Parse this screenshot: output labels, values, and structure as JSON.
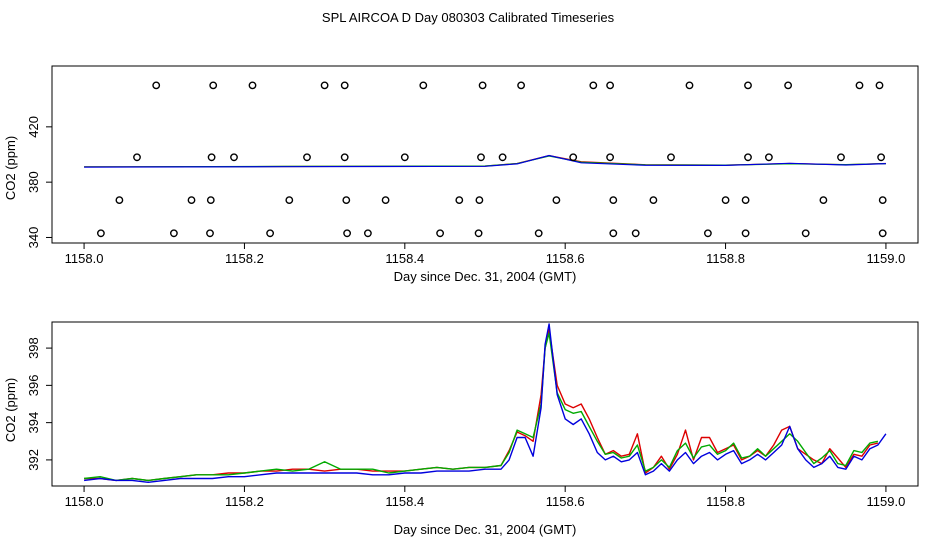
{
  "figure": {
    "title": "SPL AIRCOA D  Day 080303  Calibrated Timeseries"
  },
  "chart_data": [
    {
      "type": "scatter",
      "title": "SPL AIRCOA D  Day 080303  Calibrated Timeseries",
      "xlabel": "Day since Dec. 31, 2004 (GMT)",
      "ylabel": "CO2 (ppm)",
      "xlim": [
        1157.96,
        1159.04
      ],
      "ylim": [
        336,
        464
      ],
      "x_ticks": [
        "1158.0",
        "1158.2",
        "1158.4",
        "1158.6",
        "1158.8",
        "1159.0"
      ],
      "y_ticks": [
        "340",
        "380",
        "420"
      ],
      "grid": false,
      "colors": {
        "points": "#000000",
        "line_red": "#dd0000",
        "line_green": "#00aa00",
        "line_blue": "#0000dd"
      },
      "point_series": [
        {
          "y": 450,
          "x": [
            1158.09,
            1158.161,
            1158.21,
            1158.3,
            1158.325,
            1158.423,
            1158.497,
            1158.545,
            1158.635,
            1158.656,
            1158.755,
            1158.828,
            1158.878,
            1158.967,
            1158.992
          ]
        },
        {
          "y": 398,
          "x": [
            1158.066,
            1158.159,
            1158.187,
            1158.278,
            1158.325,
            1158.4,
            1158.495,
            1158.522,
            1158.61,
            1158.656,
            1158.732,
            1158.828,
            1158.854,
            1158.944,
            1158.994
          ]
        },
        {
          "y": 367,
          "x": [
            1158.044,
            1158.134,
            1158.158,
            1158.256,
            1158.327,
            1158.376,
            1158.468,
            1158.493,
            1158.589,
            1158.66,
            1158.71,
            1158.8,
            1158.825,
            1158.922,
            1158.996
          ]
        },
        {
          "y": 343,
          "x": [
            1158.021,
            1158.112,
            1158.157,
            1158.232,
            1158.328,
            1158.354,
            1158.444,
            1158.492,
            1158.567,
            1158.66,
            1158.688,
            1158.778,
            1158.825,
            1158.9,
            1158.996
          ]
        }
      ],
      "lines": [
        {
          "color": "red",
          "x": [
            1158.0,
            1158.25,
            1158.5,
            1158.54,
            1158.58,
            1158.62,
            1158.7,
            1158.8,
            1158.88,
            1158.95,
            1159.0
          ],
          "y": [
            391.0,
            391.3,
            391.6,
            393.5,
            399.2,
            394.8,
            392.6,
            392.3,
            393.5,
            392.6,
            393.5
          ]
        },
        {
          "color": "green",
          "x": [
            1158.0,
            1158.25,
            1158.5,
            1158.54,
            1158.58,
            1158.62,
            1158.7,
            1158.8,
            1158.88,
            1158.95,
            1159.0
          ],
          "y": [
            391.0,
            391.4,
            391.7,
            393.4,
            398.9,
            394.4,
            392.5,
            392.3,
            393.3,
            392.7,
            393.4
          ]
        },
        {
          "color": "blue",
          "x": [
            1158.0,
            1158.25,
            1158.5,
            1158.54,
            1158.58,
            1158.62,
            1158.7,
            1158.8,
            1158.88,
            1158.95,
            1159.0
          ],
          "y": [
            390.9,
            391.2,
            391.5,
            393.2,
            399.3,
            394.0,
            392.2,
            392.1,
            393.6,
            392.4,
            393.4
          ]
        }
      ]
    },
    {
      "type": "line",
      "xlabel": "Day since Dec. 31, 2004 (GMT)",
      "ylabel": "CO2 (ppm)",
      "xlim": [
        1157.96,
        1159.04
      ],
      "ylim": [
        390.6,
        399.4
      ],
      "x_ticks": [
        "1158.0",
        "1158.2",
        "1158.4",
        "1158.6",
        "1158.8",
        "1159.0"
      ],
      "y_ticks": [
        "392",
        "394",
        "396",
        "398"
      ],
      "grid": false,
      "series": [
        {
          "color": "#dd0000",
          "x": [
            1158.0,
            1158.02,
            1158.04,
            1158.06,
            1158.08,
            1158.1,
            1158.12,
            1158.14,
            1158.16,
            1158.18,
            1158.2,
            1158.22,
            1158.24,
            1158.26,
            1158.28,
            1158.3,
            1158.32,
            1158.34,
            1158.36,
            1158.38,
            1158.4,
            1158.42,
            1158.44,
            1158.46,
            1158.48,
            1158.5,
            1158.52,
            1158.53,
            1158.54,
            1158.55,
            1158.56,
            1158.57,
            1158.575,
            1158.58,
            1158.59,
            1158.6,
            1158.61,
            1158.62,
            1158.63,
            1158.64,
            1158.65,
            1158.66,
            1158.67,
            1158.68,
            1158.69,
            1158.7,
            1158.71,
            1158.72,
            1158.73,
            1158.74,
            1158.75,
            1158.76,
            1158.77,
            1158.78,
            1158.79,
            1158.8,
            1158.81,
            1158.82,
            1158.83,
            1158.84,
            1158.85,
            1158.86,
            1158.87,
            1158.88,
            1158.89,
            1158.9,
            1158.91,
            1158.92,
            1158.93,
            1158.94,
            1158.95,
            1158.96,
            1158.97,
            1158.98,
            1158.99
          ],
          "y": [
            391.0,
            391.0,
            390.9,
            391.0,
            390.9,
            391.0,
            391.1,
            391.2,
            391.2,
            391.3,
            391.3,
            391.4,
            391.4,
            391.5,
            391.5,
            391.4,
            391.5,
            391.5,
            391.4,
            391.4,
            391.4,
            391.5,
            391.6,
            391.5,
            391.6,
            391.6,
            391.7,
            392.5,
            393.5,
            393.3,
            393.0,
            395.5,
            398.0,
            399.0,
            396.0,
            395.0,
            394.8,
            395.0,
            394.2,
            393.2,
            392.3,
            392.5,
            392.2,
            392.3,
            393.4,
            391.3,
            391.6,
            392.2,
            391.5,
            392.3,
            393.6,
            392.0,
            393.2,
            393.2,
            392.4,
            392.6,
            392.8,
            392.0,
            392.2,
            392.5,
            392.2,
            392.8,
            393.6,
            393.8,
            392.6,
            392.3,
            392.0,
            391.8,
            392.6,
            392.1,
            391.6,
            392.3,
            392.2,
            392.8,
            392.9
          ]
        },
        {
          "color": "#00aa00",
          "x": [
            1158.0,
            1158.02,
            1158.04,
            1158.06,
            1158.08,
            1158.1,
            1158.12,
            1158.14,
            1158.16,
            1158.18,
            1158.2,
            1158.22,
            1158.24,
            1158.26,
            1158.28,
            1158.3,
            1158.32,
            1158.34,
            1158.36,
            1158.38,
            1158.4,
            1158.42,
            1158.44,
            1158.46,
            1158.48,
            1158.5,
            1158.52,
            1158.53,
            1158.54,
            1158.55,
            1158.56,
            1158.57,
            1158.575,
            1158.58,
            1158.59,
            1158.6,
            1158.61,
            1158.62,
            1158.63,
            1158.64,
            1158.65,
            1158.66,
            1158.67,
            1158.68,
            1158.69,
            1158.7,
            1158.71,
            1158.72,
            1158.73,
            1158.74,
            1158.75,
            1158.76,
            1158.77,
            1158.78,
            1158.79,
            1158.8,
            1158.81,
            1158.82,
            1158.83,
            1158.84,
            1158.85,
            1158.86,
            1158.87,
            1158.88,
            1158.89,
            1158.9,
            1158.91,
            1158.92,
            1158.93,
            1158.94,
            1158.95,
            1158.96,
            1158.97,
            1158.98,
            1158.99
          ],
          "y": [
            391.0,
            391.1,
            390.9,
            391.0,
            390.9,
            391.0,
            391.1,
            391.2,
            391.2,
            391.2,
            391.3,
            391.4,
            391.5,
            391.4,
            391.5,
            391.9,
            391.5,
            391.5,
            391.5,
            391.3,
            391.4,
            391.5,
            391.6,
            391.5,
            391.6,
            391.6,
            391.7,
            392.4,
            393.6,
            393.4,
            393.2,
            395.0,
            398.0,
            398.8,
            395.6,
            394.7,
            394.5,
            394.6,
            393.8,
            393.0,
            392.3,
            392.4,
            392.1,
            392.2,
            392.8,
            391.4,
            391.6,
            392.0,
            391.6,
            392.5,
            392.9,
            392.1,
            392.7,
            392.8,
            392.3,
            392.5,
            392.9,
            392.1,
            392.2,
            392.6,
            392.2,
            392.6,
            393.0,
            393.4,
            393.0,
            392.4,
            391.8,
            392.1,
            392.5,
            391.8,
            391.7,
            392.5,
            392.4,
            392.9,
            393.0
          ]
        },
        {
          "color": "#0000dd",
          "x": [
            1158.0,
            1158.02,
            1158.04,
            1158.06,
            1158.08,
            1158.1,
            1158.12,
            1158.14,
            1158.16,
            1158.18,
            1158.2,
            1158.22,
            1158.24,
            1158.26,
            1158.28,
            1158.3,
            1158.32,
            1158.34,
            1158.36,
            1158.38,
            1158.4,
            1158.42,
            1158.44,
            1158.46,
            1158.48,
            1158.5,
            1158.52,
            1158.53,
            1158.54,
            1158.55,
            1158.56,
            1158.57,
            1158.575,
            1158.58,
            1158.59,
            1158.6,
            1158.61,
            1158.62,
            1158.63,
            1158.64,
            1158.65,
            1158.66,
            1158.67,
            1158.68,
            1158.69,
            1158.7,
            1158.71,
            1158.72,
            1158.73,
            1158.74,
            1158.75,
            1158.76,
            1158.77,
            1158.78,
            1158.79,
            1158.8,
            1158.81,
            1158.82,
            1158.83,
            1158.84,
            1158.85,
            1158.86,
            1158.87,
            1158.88,
            1158.89,
            1158.9,
            1158.91,
            1158.92,
            1158.93,
            1158.94,
            1158.95,
            1158.96,
            1158.97,
            1158.98,
            1158.99,
            1159.0
          ],
          "y": [
            390.9,
            391.0,
            390.9,
            390.9,
            390.8,
            390.9,
            391.0,
            391.0,
            391.0,
            391.1,
            391.1,
            391.2,
            391.3,
            391.3,
            391.3,
            391.3,
            391.3,
            391.3,
            391.2,
            391.2,
            391.3,
            391.3,
            391.4,
            391.4,
            391.4,
            391.5,
            391.5,
            392.0,
            393.2,
            393.2,
            392.2,
            394.8,
            398.2,
            399.3,
            395.5,
            394.2,
            393.9,
            394.2,
            393.4,
            392.4,
            392.0,
            392.2,
            391.9,
            392.0,
            392.4,
            391.2,
            391.4,
            391.8,
            391.4,
            392.0,
            392.4,
            391.8,
            392.2,
            392.4,
            392.0,
            392.3,
            392.5,
            391.8,
            392.0,
            392.3,
            392.0,
            392.4,
            392.8,
            393.8,
            392.6,
            392.0,
            391.6,
            391.8,
            392.2,
            391.6,
            391.5,
            392.2,
            392.0,
            392.6,
            392.8,
            393.4
          ]
        }
      ]
    }
  ]
}
